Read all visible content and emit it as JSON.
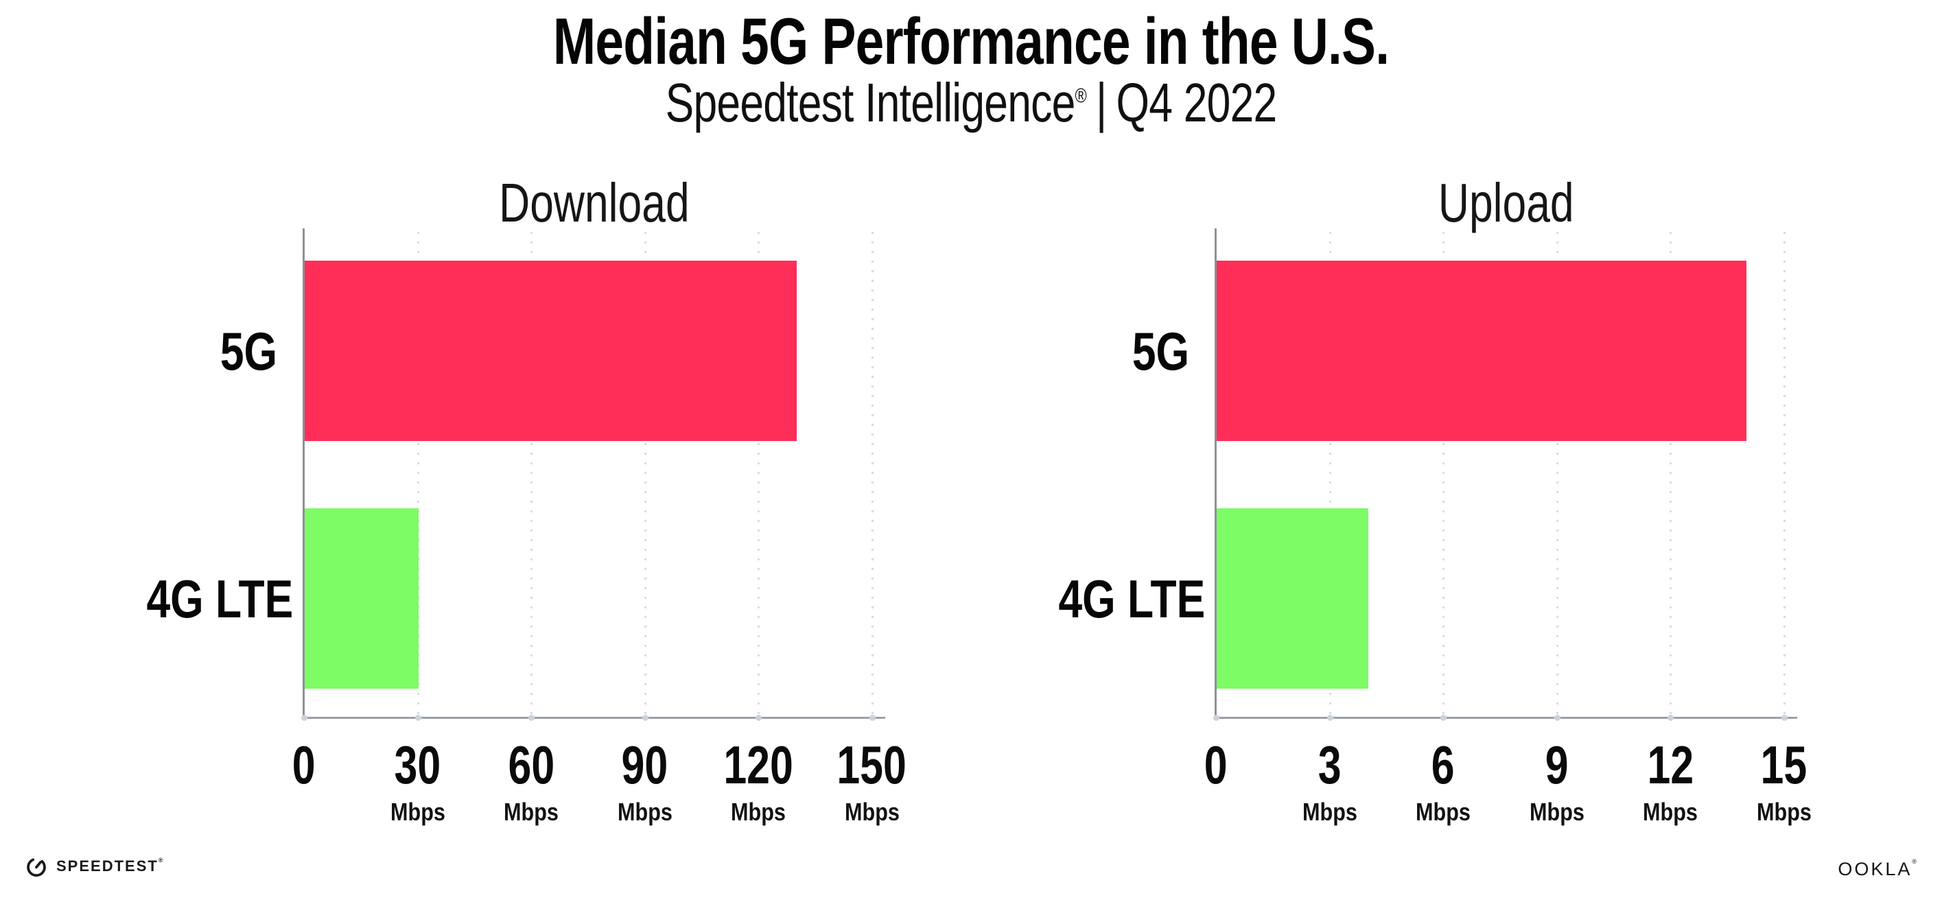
{
  "header": {
    "title": "Median 5G Performance in the U.S.",
    "subtitle_brand": "Speedtest Intelligence",
    "subtitle_mark": "®",
    "subtitle_separator": "|",
    "subtitle_period": "Q4 2022"
  },
  "chart_data": [
    {
      "type": "bar",
      "orientation": "horizontal",
      "title": "Download",
      "categories": [
        "5G",
        "4G LTE"
      ],
      "values": [
        130,
        30
      ],
      "unit": "Mbps",
      "xlim": [
        0,
        150
      ],
      "xticks": [
        0,
        30,
        60,
        90,
        120,
        150
      ],
      "bar_colors": [
        "#FF2E59",
        "#7DFC66"
      ],
      "grid": "dotted-vertical",
      "legend": "none"
    },
    {
      "type": "bar",
      "orientation": "horizontal",
      "title": "Upload",
      "categories": [
        "5G",
        "4G LTE"
      ],
      "values": [
        14,
        4
      ],
      "unit": "Mbps",
      "xlim": [
        0,
        15
      ],
      "xticks": [
        0,
        3,
        6,
        9,
        12,
        15
      ],
      "bar_colors": [
        "#FF2E59",
        "#7DFC66"
      ],
      "grid": "dotted-vertical",
      "legend": "none"
    }
  ],
  "footer": {
    "speedtest_text": "SPEEDTEST",
    "speedtest_mark": "®",
    "ookla_text": "OOKLA",
    "ookla_mark": "®"
  },
  "colors": {
    "bar_5g": "#FF2E59",
    "bar_4g_lte": "#7DFC66",
    "axis": "#9ba0a6",
    "grid_dot": "#d8dbe2",
    "background": "#ffffff"
  }
}
